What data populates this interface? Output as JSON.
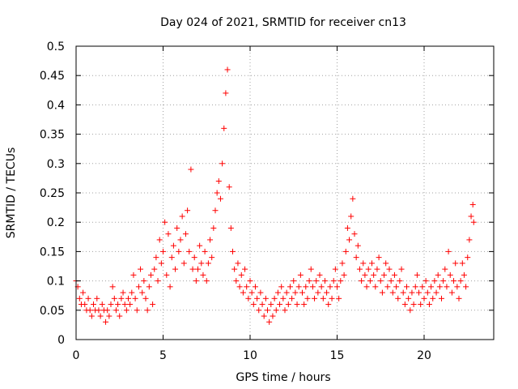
{
  "chart_data": {
    "type": "scatter",
    "title": "Day 024 of 2021, SRMTID for receiver cn13",
    "xlabel": "GPS time / hours",
    "ylabel": "SRMTID / TECUs",
    "xlim": [
      0,
      24
    ],
    "ylim": [
      0,
      0.5
    ],
    "x_ticks": [
      0,
      5,
      10,
      15,
      20
    ],
    "y_ticks": [
      0,
      0.05,
      0.1,
      0.15,
      0.2,
      0.25,
      0.3,
      0.35,
      0.4,
      0.45,
      0.5
    ],
    "x_tick_labels": [
      "0",
      "5",
      "10",
      "15",
      "20"
    ],
    "y_tick_labels": [
      "0",
      "0.05",
      "0.1",
      "0.15",
      "0.2",
      "0.25",
      "0.3",
      "0.35",
      "0.4",
      "0.45",
      "0.5"
    ],
    "grid": true,
    "series": [
      {
        "name": "SRMTID",
        "marker": "+",
        "color": "#ff0000",
        "points": [
          [
            0.0,
            0.1
          ],
          [
            0.1,
            0.09
          ],
          [
            0.2,
            0.07
          ],
          [
            0.3,
            0.06
          ],
          [
            0.4,
            0.08
          ],
          [
            0.5,
            0.06
          ],
          [
            0.6,
            0.05
          ],
          [
            0.7,
            0.07
          ],
          [
            0.8,
            0.05
          ],
          [
            0.9,
            0.04
          ],
          [
            1.0,
            0.06
          ],
          [
            1.1,
            0.05
          ],
          [
            1.2,
            0.07
          ],
          [
            1.3,
            0.05
          ],
          [
            1.4,
            0.04
          ],
          [
            1.5,
            0.06
          ],
          [
            1.6,
            0.05
          ],
          [
            1.7,
            0.03
          ],
          [
            1.8,
            0.05
          ],
          [
            1.9,
            0.04
          ],
          [
            2.0,
            0.06
          ],
          [
            2.1,
            0.09
          ],
          [
            2.2,
            0.07
          ],
          [
            2.3,
            0.05
          ],
          [
            2.4,
            0.06
          ],
          [
            2.5,
            0.04
          ],
          [
            2.6,
            0.07
          ],
          [
            2.7,
            0.08
          ],
          [
            2.8,
            0.06
          ],
          [
            2.9,
            0.05
          ],
          [
            3.0,
            0.07
          ],
          [
            3.1,
            0.06
          ],
          [
            3.2,
            0.08
          ],
          [
            3.3,
            0.11
          ],
          [
            3.4,
            0.07
          ],
          [
            3.5,
            0.05
          ],
          [
            3.6,
            0.09
          ],
          [
            3.7,
            0.12
          ],
          [
            3.8,
            0.08
          ],
          [
            3.9,
            0.1
          ],
          [
            4.0,
            0.07
          ],
          [
            4.1,
            0.05
          ],
          [
            4.2,
            0.09
          ],
          [
            4.3,
            0.11
          ],
          [
            4.4,
            0.06
          ],
          [
            4.5,
            0.12
          ],
          [
            4.6,
            0.14
          ],
          [
            4.7,
            0.1
          ],
          [
            4.8,
            0.17
          ],
          [
            4.9,
            0.13
          ],
          [
            5.0,
            0.15
          ],
          [
            5.1,
            0.2
          ],
          [
            5.2,
            0.11
          ],
          [
            5.3,
            0.18
          ],
          [
            5.4,
            0.09
          ],
          [
            5.5,
            0.14
          ],
          [
            5.6,
            0.16
          ],
          [
            5.7,
            0.12
          ],
          [
            5.8,
            0.19
          ],
          [
            5.9,
            0.15
          ],
          [
            6.0,
            0.17
          ],
          [
            6.1,
            0.21
          ],
          [
            6.2,
            0.13
          ],
          [
            6.3,
            0.18
          ],
          [
            6.4,
            0.22
          ],
          [
            6.5,
            0.15
          ],
          [
            6.6,
            0.29
          ],
          [
            6.7,
            0.12
          ],
          [
            6.8,
            0.14
          ],
          [
            6.9,
            0.1
          ],
          [
            7.0,
            0.12
          ],
          [
            7.1,
            0.16
          ],
          [
            7.2,
            0.13
          ],
          [
            7.3,
            0.11
          ],
          [
            7.4,
            0.15
          ],
          [
            7.5,
            0.1
          ],
          [
            7.6,
            0.13
          ],
          [
            7.7,
            0.17
          ],
          [
            7.8,
            0.14
          ],
          [
            7.9,
            0.19
          ],
          [
            8.0,
            0.22
          ],
          [
            8.1,
            0.25
          ],
          [
            8.2,
            0.27
          ],
          [
            8.3,
            0.24
          ],
          [
            8.4,
            0.3
          ],
          [
            8.5,
            0.36
          ],
          [
            8.6,
            0.42
          ],
          [
            8.7,
            0.46
          ],
          [
            8.8,
            0.26
          ],
          [
            8.9,
            0.19
          ],
          [
            9.0,
            0.15
          ],
          [
            9.1,
            0.12
          ],
          [
            9.2,
            0.1
          ],
          [
            9.3,
            0.13
          ],
          [
            9.4,
            0.09
          ],
          [
            9.5,
            0.11
          ],
          [
            9.6,
            0.08
          ],
          [
            9.7,
            0.12
          ],
          [
            9.8,
            0.09
          ],
          [
            9.9,
            0.07
          ],
          [
            10.0,
            0.1
          ],
          [
            10.1,
            0.08
          ],
          [
            10.2,
            0.06
          ],
          [
            10.3,
            0.09
          ],
          [
            10.4,
            0.07
          ],
          [
            10.5,
            0.05
          ],
          [
            10.6,
            0.08
          ],
          [
            10.7,
            0.06
          ],
          [
            10.8,
            0.04
          ],
          [
            10.9,
            0.07
          ],
          [
            11.0,
            0.05
          ],
          [
            11.1,
            0.03
          ],
          [
            11.2,
            0.06
          ],
          [
            11.3,
            0.04
          ],
          [
            11.4,
            0.07
          ],
          [
            11.5,
            0.05
          ],
          [
            11.6,
            0.08
          ],
          [
            11.7,
            0.06
          ],
          [
            11.8,
            0.09
          ],
          [
            11.9,
            0.07
          ],
          [
            12.0,
            0.05
          ],
          [
            12.1,
            0.08
          ],
          [
            12.2,
            0.06
          ],
          [
            12.3,
            0.09
          ],
          [
            12.4,
            0.07
          ],
          [
            12.5,
            0.1
          ],
          [
            12.6,
            0.08
          ],
          [
            12.7,
            0.06
          ],
          [
            12.8,
            0.09
          ],
          [
            12.9,
            0.11
          ],
          [
            13.0,
            0.08
          ],
          [
            13.1,
            0.06
          ],
          [
            13.2,
            0.09
          ],
          [
            13.3,
            0.07
          ],
          [
            13.4,
            0.1
          ],
          [
            13.5,
            0.12
          ],
          [
            13.6,
            0.09
          ],
          [
            13.7,
            0.07
          ],
          [
            13.8,
            0.1
          ],
          [
            13.9,
            0.08
          ],
          [
            14.0,
            0.11
          ],
          [
            14.1,
            0.09
          ],
          [
            14.2,
            0.07
          ],
          [
            14.3,
            0.1
          ],
          [
            14.4,
            0.08
          ],
          [
            14.5,
            0.06
          ],
          [
            14.6,
            0.09
          ],
          [
            14.7,
            0.07
          ],
          [
            14.8,
            0.1
          ],
          [
            14.9,
            0.12
          ],
          [
            15.0,
            0.09
          ],
          [
            15.1,
            0.07
          ],
          [
            15.2,
            0.1
          ],
          [
            15.3,
            0.13
          ],
          [
            15.4,
            0.11
          ],
          [
            15.5,
            0.15
          ],
          [
            15.6,
            0.19
          ],
          [
            15.7,
            0.17
          ],
          [
            15.8,
            0.21
          ],
          [
            15.9,
            0.24
          ],
          [
            16.0,
            0.18
          ],
          [
            16.1,
            0.14
          ],
          [
            16.2,
            0.16
          ],
          [
            16.3,
            0.12
          ],
          [
            16.4,
            0.1
          ],
          [
            16.5,
            0.13
          ],
          [
            16.6,
            0.11
          ],
          [
            16.7,
            0.09
          ],
          [
            16.8,
            0.12
          ],
          [
            16.9,
            0.1
          ],
          [
            17.0,
            0.13
          ],
          [
            17.1,
            0.11
          ],
          [
            17.2,
            0.09
          ],
          [
            17.3,
            0.12
          ],
          [
            17.4,
            0.14
          ],
          [
            17.5,
            0.1
          ],
          [
            17.6,
            0.08
          ],
          [
            17.7,
            0.11
          ],
          [
            17.8,
            0.13
          ],
          [
            17.9,
            0.09
          ],
          [
            18.0,
            0.12
          ],
          [
            18.1,
            0.1
          ],
          [
            18.2,
            0.08
          ],
          [
            18.3,
            0.11
          ],
          [
            18.4,
            0.09
          ],
          [
            18.5,
            0.07
          ],
          [
            18.6,
            0.1
          ],
          [
            18.7,
            0.12
          ],
          [
            18.8,
            0.08
          ],
          [
            18.9,
            0.06
          ],
          [
            19.0,
            0.09
          ],
          [
            19.1,
            0.07
          ],
          [
            19.2,
            0.05
          ],
          [
            19.3,
            0.08
          ],
          [
            19.4,
            0.06
          ],
          [
            19.5,
            0.09
          ],
          [
            19.6,
            0.11
          ],
          [
            19.7,
            0.08
          ],
          [
            19.8,
            0.06
          ],
          [
            19.9,
            0.09
          ],
          [
            20.0,
            0.07
          ],
          [
            20.1,
            0.1
          ],
          [
            20.2,
            0.08
          ],
          [
            20.3,
            0.06
          ],
          [
            20.4,
            0.09
          ],
          [
            20.5,
            0.07
          ],
          [
            20.6,
            0.1
          ],
          [
            20.7,
            0.08
          ],
          [
            20.8,
            0.11
          ],
          [
            20.9,
            0.09
          ],
          [
            21.0,
            0.07
          ],
          [
            21.1,
            0.1
          ],
          [
            21.2,
            0.12
          ],
          [
            21.3,
            0.09
          ],
          [
            21.4,
            0.15
          ],
          [
            21.5,
            0.11
          ],
          [
            21.6,
            0.08
          ],
          [
            21.7,
            0.1
          ],
          [
            21.8,
            0.13
          ],
          [
            21.9,
            0.09
          ],
          [
            22.0,
            0.07
          ],
          [
            22.1,
            0.1
          ],
          [
            22.2,
            0.13
          ],
          [
            22.3,
            0.11
          ],
          [
            22.4,
            0.09
          ],
          [
            22.5,
            0.14
          ],
          [
            22.6,
            0.17
          ],
          [
            22.7,
            0.21
          ],
          [
            22.8,
            0.23
          ],
          [
            22.85,
            0.2
          ]
        ]
      }
    ]
  }
}
